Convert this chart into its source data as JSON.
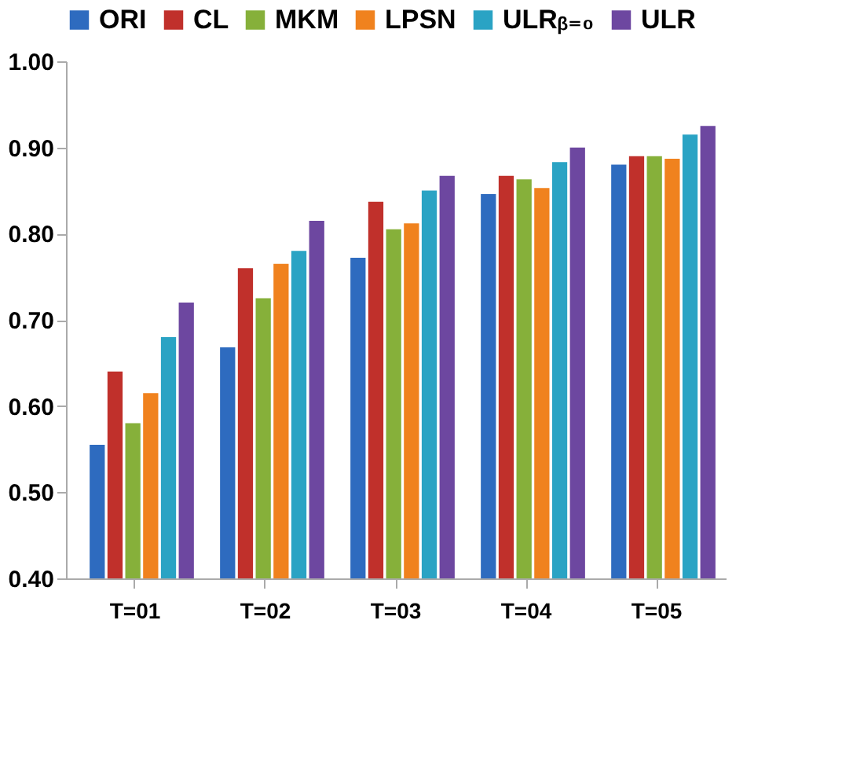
{
  "chart_data": {
    "type": "bar",
    "categories": [
      "T=01",
      "T=02",
      "T=03",
      "T=04",
      "T=05"
    ],
    "series": [
      {
        "name": "ORI",
        "color": "#2e6bbf",
        "values": [
          0.555,
          0.668,
          0.772,
          0.846,
          0.88
        ]
      },
      {
        "name": "CL",
        "color": "#c0302b",
        "values": [
          0.64,
          0.76,
          0.837,
          0.867,
          0.89
        ]
      },
      {
        "name": "MKM",
        "color": "#86b03a",
        "values": [
          0.58,
          0.725,
          0.805,
          0.863,
          0.89
        ]
      },
      {
        "name": "LPSN",
        "color": "#f0821e",
        "values": [
          0.615,
          0.765,
          0.812,
          0.853,
          0.887
        ]
      },
      {
        "name": "ULRᵦ₌₀",
        "color": "#2aa3c4",
        "values": [
          0.68,
          0.78,
          0.85,
          0.883,
          0.915
        ]
      },
      {
        "name": "ULR",
        "color": "#6d47a0",
        "values": [
          0.72,
          0.815,
          0.867,
          0.9,
          0.925
        ]
      }
    ],
    "ylim": [
      0.4,
      1.0
    ],
    "yticks": [
      {
        "value": 0.4,
        "label": "0.40"
      },
      {
        "value": 0.5,
        "label": "0.50"
      },
      {
        "value": 0.6,
        "label": "0.60"
      },
      {
        "value": 0.7,
        "label": "0.70"
      },
      {
        "value": 0.8,
        "label": "0.80"
      },
      {
        "value": 0.9,
        "label": "0.90"
      },
      {
        "value": 1.0,
        "label": "1.00"
      }
    ],
    "grid": false,
    "legend": "top"
  }
}
